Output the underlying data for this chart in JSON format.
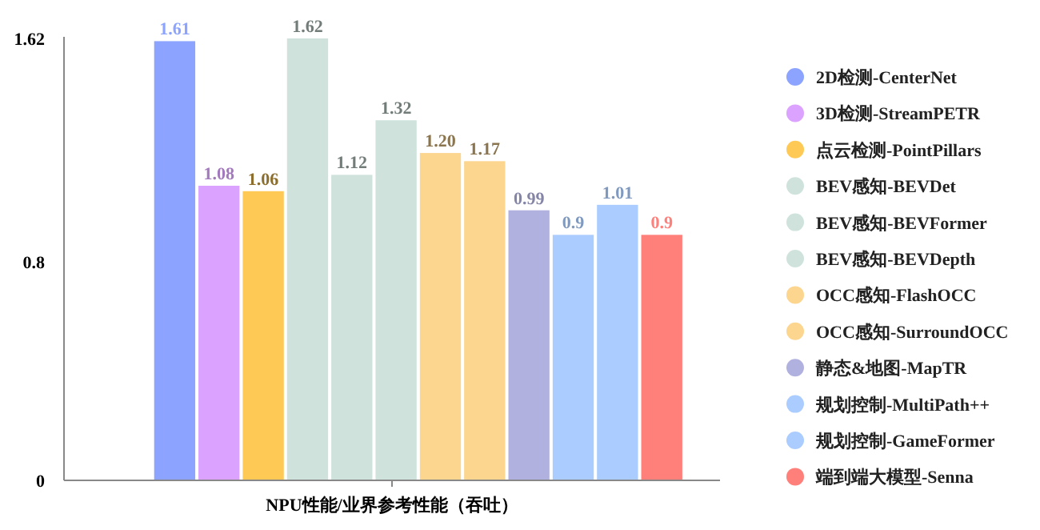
{
  "chart_data": {
    "type": "bar",
    "categories": [
      "NPU性能/业界参考性能（吞吐）"
    ],
    "ylim": [
      0,
      1.62
    ],
    "yticks": [
      0,
      0.8,
      1.62
    ],
    "grid": false,
    "legend": "right",
    "series": [
      {
        "name": "2D检测-CenterNet",
        "color": "#8ca4ff",
        "values": [
          1.61
        ],
        "value_labels": [
          "1.61"
        ]
      },
      {
        "name": "3D检测-StreamPETR",
        "color": "#dba3ff",
        "values": [
          1.08
        ],
        "value_labels": [
          "1.08"
        ]
      },
      {
        "name": "点云检测-PointPillars",
        "color": "#ffc955",
        "values": [
          1.06
        ],
        "value_labels": [
          "1.06"
        ]
      },
      {
        "name": "BEV感知-BEVDet",
        "color": "#cfe3dc",
        "values": [
          1.62
        ],
        "value_labels": [
          "1.62"
        ]
      },
      {
        "name": "BEV感知-BEVFormer",
        "color": "#cfe3dc",
        "values": [
          1.12
        ],
        "value_labels": [
          "1.12"
        ]
      },
      {
        "name": "BEV感知-BEVDepth",
        "color": "#cfe3dc",
        "values": [
          1.32
        ],
        "value_labels": [
          "1.32"
        ]
      },
      {
        "name": "OCC感知-FlashOCC",
        "color": "#fcd58f",
        "values": [
          1.2
        ],
        "value_labels": [
          "1.20"
        ]
      },
      {
        "name": "OCC感知-SurroundOCC",
        "color": "#fcd58f",
        "values": [
          1.17
        ],
        "value_labels": [
          "1.17"
        ]
      },
      {
        "name": "静态&地图-MapTR",
        "color": "#b1b1e0",
        "values": [
          0.99
        ],
        "value_labels": [
          "0.99"
        ]
      },
      {
        "name": "规划控制-MultiPath++",
        "color": "#aaccff",
        "values": [
          0.9
        ],
        "value_labels": [
          "0.9"
        ]
      },
      {
        "name": "规划控制-GameFormer",
        "color": "#aaccff",
        "values": [
          1.01
        ],
        "value_labels": [
          "1.01"
        ]
      },
      {
        "name": "端到端大模型-Senna",
        "color": "#ff7f7a",
        "values": [
          0.9
        ],
        "value_labels": [
          "0.9"
        ]
      }
    ]
  }
}
